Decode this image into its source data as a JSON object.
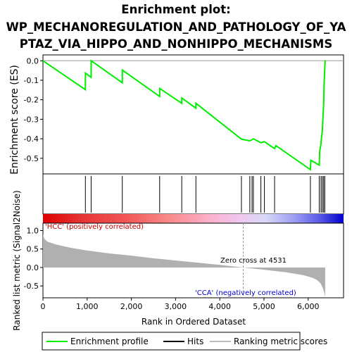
{
  "title_lines": [
    "Enrichment plot:",
    "WP_MECHANOREGULATION_AND_PATHOLOGY_OF_YA",
    "PTAZ_VIA_HIPPO_AND_NONHIPPO_MECHANISMS"
  ],
  "colors": {
    "enrichment": "#00ee00",
    "hits": "#000000",
    "metric_fill": "#b0b0b0",
    "positive_label": "#cc0000",
    "negative_label": "#0000cc",
    "zero_line": "#999999"
  },
  "chart_data": [
    {
      "type": "line",
      "name": "enrichment-score-panel",
      "ylabel": "Enrichment score (ES)",
      "ylim": [
        -0.58,
        0.03
      ],
      "yticks": [
        0.0,
        -0.1,
        -0.2,
        -0.3,
        -0.4,
        -0.5
      ],
      "ytick_labels": [
        "0.0",
        "-0.1",
        "-0.2",
        "-0.3",
        "-0.4",
        "-0.5"
      ],
      "xlim": [
        0,
        6800
      ],
      "grid": false,
      "series": [
        {
          "name": "Enrichment profile",
          "x": [
            0,
            960,
            961,
            1090,
            1091,
            1795,
            1796,
            2640,
            2641,
            3140,
            3141,
            3460,
            3461,
            4490,
            4680,
            4730,
            4760,
            4930,
            5010,
            5240,
            5270,
            6050,
            6060,
            6250,
            6260,
            6290,
            6300,
            6320,
            6330,
            6350,
            6360,
            6375,
            6385
          ],
          "y": [
            0.0,
            -0.148,
            -0.063,
            -0.085,
            0.0,
            -0.113,
            -0.048,
            -0.183,
            -0.142,
            -0.218,
            -0.191,
            -0.243,
            -0.218,
            -0.402,
            -0.41,
            -0.405,
            -0.4,
            -0.42,
            -0.415,
            -0.45,
            -0.435,
            -0.558,
            -0.51,
            -0.535,
            -0.465,
            -0.425,
            -0.395,
            -0.36,
            -0.31,
            -0.22,
            -0.12,
            -0.04,
            0.003
          ]
        }
      ]
    },
    {
      "type": "scatter",
      "name": "hits-panel",
      "series": [
        {
          "name": "Hits",
          "x": [
            960,
            1090,
            1795,
            2640,
            3140,
            3460,
            4490,
            4680,
            4730,
            4760,
            4930,
            5010,
            5240,
            6050,
            6250,
            6290,
            6320,
            6350,
            6375
          ]
        }
      ]
    },
    {
      "type": "area",
      "name": "ranked-metric-panel",
      "xlabel": "Rank in Ordered Dataset",
      "ylabel": "Ranked list metric (Signal2Noise)",
      "xlim": [
        0,
        6800
      ],
      "xticks": [
        0,
        1000,
        2000,
        3000,
        4000,
        5000,
        6000
      ],
      "xtick_labels": [
        "0",
        "1,000",
        "2,000",
        "3,000",
        "4,000",
        "5,000",
        "6,000"
      ],
      "ylim": [
        -0.82,
        1.2
      ],
      "yticks": [
        1.0,
        0.5,
        0.0,
        -0.5
      ],
      "ytick_labels": [
        "1.0",
        "0.5",
        "0.0",
        "-0.5"
      ],
      "zero_cross": 4531,
      "series": [
        {
          "name": "Ranking metric scores",
          "x": [
            0,
            30,
            100,
            300,
            600,
            1000,
            1500,
            2000,
            2500,
            3000,
            3500,
            4000,
            4531,
            5000,
            5500,
            5900,
            6100,
            6200,
            6280,
            6330,
            6370,
            6385
          ],
          "y": [
            0.9,
            0.78,
            0.7,
            0.62,
            0.54,
            0.46,
            0.38,
            0.32,
            0.25,
            0.19,
            0.13,
            0.07,
            0.0,
            -0.06,
            -0.13,
            -0.21,
            -0.28,
            -0.34,
            -0.43,
            -0.55,
            -0.7,
            -0.8
          ]
        }
      ],
      "annotations": [
        "'HCC' (positively correlated)",
        "Zero cross at 4531",
        "'CCA' (negatively correlated)"
      ]
    }
  ],
  "legend": [
    {
      "label": "Enrichment profile"
    },
    {
      "label": "Hits"
    },
    {
      "label": "Ranking metric scores"
    }
  ]
}
